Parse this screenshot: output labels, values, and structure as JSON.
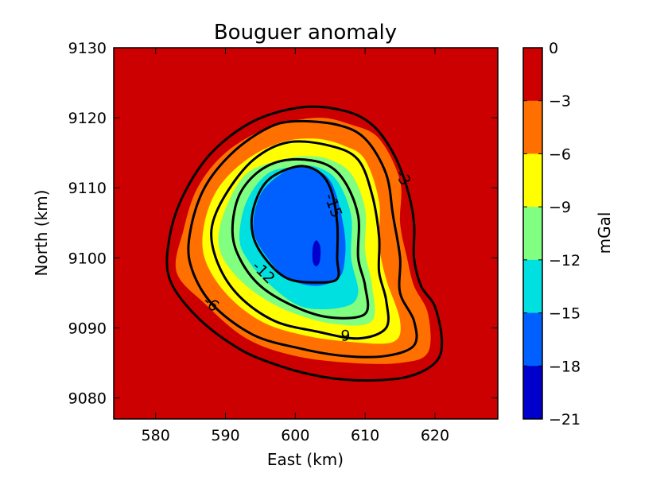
{
  "chart_data": {
    "type": "contour",
    "title": "Bouguer anomaly",
    "xlabel": "East (km)",
    "ylabel": "North (km)",
    "xlim": [
      574,
      629
    ],
    "ylim": [
      9077,
      9130
    ],
    "xticks": [
      580,
      590,
      600,
      610,
      620
    ],
    "yticks": [
      9080,
      9090,
      9100,
      9110,
      9120,
      9130
    ],
    "colorbar": {
      "label": "mGal",
      "levels": [
        0,
        -3,
        -6,
        -9,
        -12,
        -15,
        -18,
        -21
      ],
      "tick_labels": [
        "0",
        "−3",
        "−6",
        "−9",
        "−12",
        "−15",
        "−18",
        "−21"
      ],
      "band_colors": [
        "#cc0000",
        "#ff7000",
        "#ffff00",
        "#80ff80",
        "#00e0e0",
        "#0060ff",
        "#0000cc"
      ]
    },
    "filled_regions": [
      {
        "range": [
          -3,
          0
        ],
        "color": "#cc0000",
        "boundary": [
          [
            609,
            9119.5
          ],
          [
            613,
            9118
          ],
          [
            616,
            9113
          ],
          [
            617,
            9107
          ],
          [
            617.5,
            9102
          ],
          [
            618,
            9098
          ],
          [
            620,
            9093
          ],
          [
            621.5,
            9088
          ],
          [
            621,
            9084
          ],
          [
            618,
            9082
          ],
          [
            612,
            9082
          ],
          [
            605,
            9083
          ],
          [
            598,
            9084
          ],
          [
            591,
            9087
          ],
          [
            585,
            9091.5
          ],
          [
            581,
            9097
          ],
          [
            582,
            9103
          ],
          [
            583,
            9108
          ],
          [
            587,
            9114
          ],
          [
            592,
            9119
          ],
          [
            598,
            9121
          ],
          [
            604,
            9121
          ]
        ]
      },
      {
        "range": [
          -6,
          -3
        ],
        "color": "#ff7000",
        "boundary": [
          [
            608,
            9119
          ],
          [
            612,
            9117
          ],
          [
            615,
            9111
          ],
          [
            615,
            9105
          ],
          [
            616,
            9100
          ],
          [
            617,
            9096
          ],
          [
            619,
            9092
          ],
          [
            619,
            9086.5
          ],
          [
            615,
            9085
          ],
          [
            608,
            9085
          ],
          [
            600,
            9086
          ],
          [
            593,
            9088.5
          ],
          [
            587,
            9093.5
          ],
          [
            583,
            9098
          ],
          [
            584,
            9104
          ],
          [
            586,
            9110
          ],
          [
            590,
            9115
          ],
          [
            596,
            9118.5
          ],
          [
            603,
            9120
          ]
        ]
      },
      {
        "range": [
          -9,
          -6
        ],
        "color": "#ffff00",
        "boundary": [
          [
            607,
            9116
          ],
          [
            610,
            9114
          ],
          [
            612,
            9108
          ],
          [
            612,
            9102
          ],
          [
            613,
            9097
          ],
          [
            615,
            9091
          ],
          [
            614,
            9088
          ],
          [
            608,
            9088
          ],
          [
            601,
            9089
          ],
          [
            595,
            9091
          ],
          [
            590,
            9095
          ],
          [
            587,
            9100
          ],
          [
            587,
            9105
          ],
          [
            589,
            9110
          ],
          [
            593,
            9114
          ],
          [
            598,
            9116.5
          ],
          [
            603,
            9117
          ]
        ]
      },
      {
        "range": [
          -12,
          -9
        ],
        "color": "#80ff80",
        "boundary": [
          [
            605,
            9114
          ],
          [
            608,
            9112
          ],
          [
            610,
            9107
          ],
          [
            610,
            9101
          ],
          [
            611,
            9096
          ],
          [
            611,
            9091
          ],
          [
            606,
            9090.5
          ],
          [
            600,
            9092
          ],
          [
            595,
            9094.5
          ],
          [
            591,
            9098
          ],
          [
            589,
            9102
          ],
          [
            590,
            9107
          ],
          [
            593,
            9112
          ],
          [
            598,
            9114
          ],
          [
            602,
            9114.5
          ]
        ]
      },
      {
        "range": [
          -15,
          -12
        ],
        "color": "#00e0e0",
        "boundary": [
          [
            603,
            9113
          ],
          [
            606,
            9111
          ],
          [
            608,
            9106
          ],
          [
            608,
            9100
          ],
          [
            609,
            9095
          ],
          [
            607,
            9093
          ],
          [
            601,
            9093
          ],
          [
            596,
            9096.5
          ],
          [
            593,
            9100
          ],
          [
            592,
            9103
          ],
          [
            593,
            9108
          ],
          [
            596,
            9112
          ],
          [
            600,
            9113
          ]
        ]
      },
      {
        "range": [
          -18,
          -15
        ],
        "color": "#0060ff",
        "boundary": [
          [
            601,
            9113
          ],
          [
            605,
            9111
          ],
          [
            607,
            9104
          ],
          [
            607,
            9099
          ],
          [
            606,
            9097
          ],
          [
            603,
            9096
          ],
          [
            599,
            9097
          ],
          [
            596,
            9100
          ],
          [
            594,
            9104
          ],
          [
            595,
            9109
          ],
          [
            598,
            9112
          ]
        ]
      },
      {
        "range": [
          -21,
          -18
        ],
        "color": "#0000cc",
        "boundary": [
          [
            603,
            9102.5
          ],
          [
            603.6,
            9101.5
          ],
          [
            603.5,
            9099.5
          ],
          [
            603,
            9098.8
          ],
          [
            602.5,
            9099.5
          ],
          [
            602.5,
            9101.5
          ]
        ]
      }
    ],
    "contour_lines": [
      {
        "level": -3,
        "points": [
          [
            601,
            9121.5
          ],
          [
            607,
            9121
          ],
          [
            611,
            9119
          ],
          [
            614,
            9115
          ],
          [
            616,
            9110
          ],
          [
            617,
            9105
          ],
          [
            617,
            9100
          ],
          [
            618,
            9096
          ],
          [
            620,
            9093
          ],
          [
            621,
            9088
          ],
          [
            620,
            9085
          ],
          [
            616,
            9083
          ],
          [
            610,
            9082.5
          ],
          [
            604,
            9083
          ],
          [
            598,
            9084.5
          ],
          [
            592,
            9087
          ],
          [
            586,
            9091.5
          ],
          [
            582,
            9097
          ],
          [
            582,
            9103
          ],
          [
            584,
            9109
          ],
          [
            588,
            9115
          ],
          [
            594,
            9119.5
          ]
        ]
      },
      {
        "level": -6,
        "points": [
          [
            600,
            9119.5
          ],
          [
            606,
            9119
          ],
          [
            610,
            9117
          ],
          [
            613,
            9112
          ],
          [
            614,
            9106
          ],
          [
            615,
            9100
          ],
          [
            615,
            9095
          ],
          [
            617,
            9091
          ],
          [
            617,
            9087.5
          ],
          [
            613,
            9086
          ],
          [
            607,
            9086
          ],
          [
            601,
            9087
          ],
          [
            594,
            9089
          ],
          [
            588,
            9093.5
          ],
          [
            585,
            9099
          ],
          [
            585,
            9104
          ],
          [
            587,
            9110
          ],
          [
            591,
            9115
          ],
          [
            596,
            9118.5
          ]
        ]
      },
      {
        "level": -9,
        "points": [
          [
            599,
            9116.5
          ],
          [
            605,
            9116
          ],
          [
            609,
            9114
          ],
          [
            611,
            9109
          ],
          [
            612,
            9103
          ],
          [
            612,
            9098
          ],
          [
            613,
            9094
          ],
          [
            613,
            9090
          ],
          [
            609,
            9088.5
          ],
          [
            603,
            9089.5
          ],
          [
            597,
            9091
          ],
          [
            592,
            9094.5
          ],
          [
            589,
            9099
          ],
          [
            588,
            9104
          ],
          [
            590,
            9109
          ],
          [
            594,
            9114
          ]
        ]
      },
      {
        "level": -12,
        "points": [
          [
            599,
            9114
          ],
          [
            604,
            9113.5
          ],
          [
            607,
            9111
          ],
          [
            609,
            9106
          ],
          [
            609,
            9100
          ],
          [
            610,
            9096
          ],
          [
            610,
            9092
          ],
          [
            605,
            9091.5
          ],
          [
            600,
            9093
          ],
          [
            595,
            9096
          ],
          [
            592,
            9100
          ],
          [
            591,
            9104
          ],
          [
            592,
            9109
          ],
          [
            595,
            9112.5
          ]
        ]
      },
      {
        "level": -15,
        "points": [
          [
            600,
            9113
          ],
          [
            603,
            9112.5
          ],
          [
            605,
            9110
          ],
          [
            606,
            9105
          ],
          [
            606,
            9100
          ],
          [
            606,
            9097
          ],
          [
            603,
            9096.5
          ],
          [
            599,
            9097
          ],
          [
            596,
            9099.5
          ],
          [
            594,
            9103
          ],
          [
            594,
            9107
          ],
          [
            596,
            9111
          ]
        ]
      }
    ],
    "contour_labels": [
      {
        "text": "-3",
        "x": 615.5,
        "y": 9111.5,
        "rotate": 62
      },
      {
        "text": "-6",
        "x": 588,
        "y": 9093.5,
        "rotate": 38
      },
      {
        "text": "-9",
        "x": 606.8,
        "y": 9089,
        "rotate": 0
      },
      {
        "text": "-12",
        "x": 595.5,
        "y": 9098,
        "rotate": 45
      },
      {
        "text": "-15",
        "x": 605.5,
        "y": 9107.5,
        "rotate": 70
      }
    ],
    "grid": false
  }
}
